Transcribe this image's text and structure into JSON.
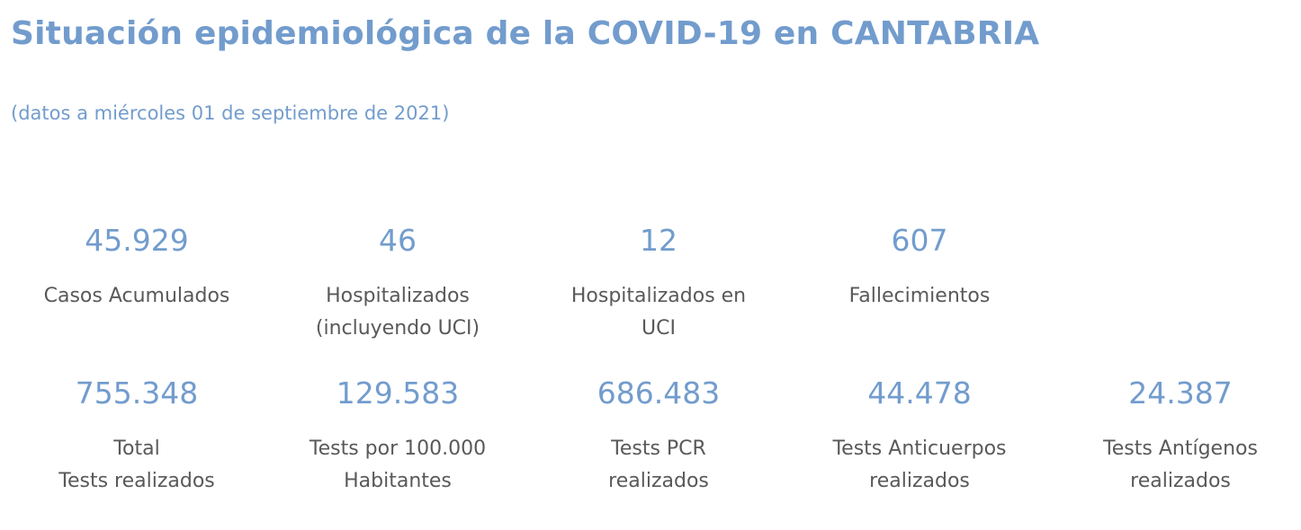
{
  "header": {
    "title": "Situación epidemiológica de la COVID-19 en CANTABRIA",
    "subtitle": "(datos a miércoles 01 de septiembre de 2021)"
  },
  "colors": {
    "accent": "#729ccd",
    "label_text": "#595959",
    "background": "#ffffff"
  },
  "stats_row_1": [
    {
      "value": "45.929",
      "label": "Casos Acumulados"
    },
    {
      "value": "46",
      "label": "Hospitalizados\n(incluyendo UCI)"
    },
    {
      "value": "12",
      "label": "Hospitalizados en\nUCI"
    },
    {
      "value": "607",
      "label": "Fallecimientos"
    }
  ],
  "stats_row_2": [
    {
      "value": "755.348",
      "label": "Total\nTests realizados"
    },
    {
      "value": "129.583",
      "label": "Tests por 100.000\nHabitantes"
    },
    {
      "value": "686.483",
      "label": "Tests PCR\nrealizados"
    },
    {
      "value": "44.478",
      "label": "Tests Anticuerpos\nrealizados"
    },
    {
      "value": "24.387",
      "label": "Tests Antígenos\nrealizados"
    }
  ]
}
